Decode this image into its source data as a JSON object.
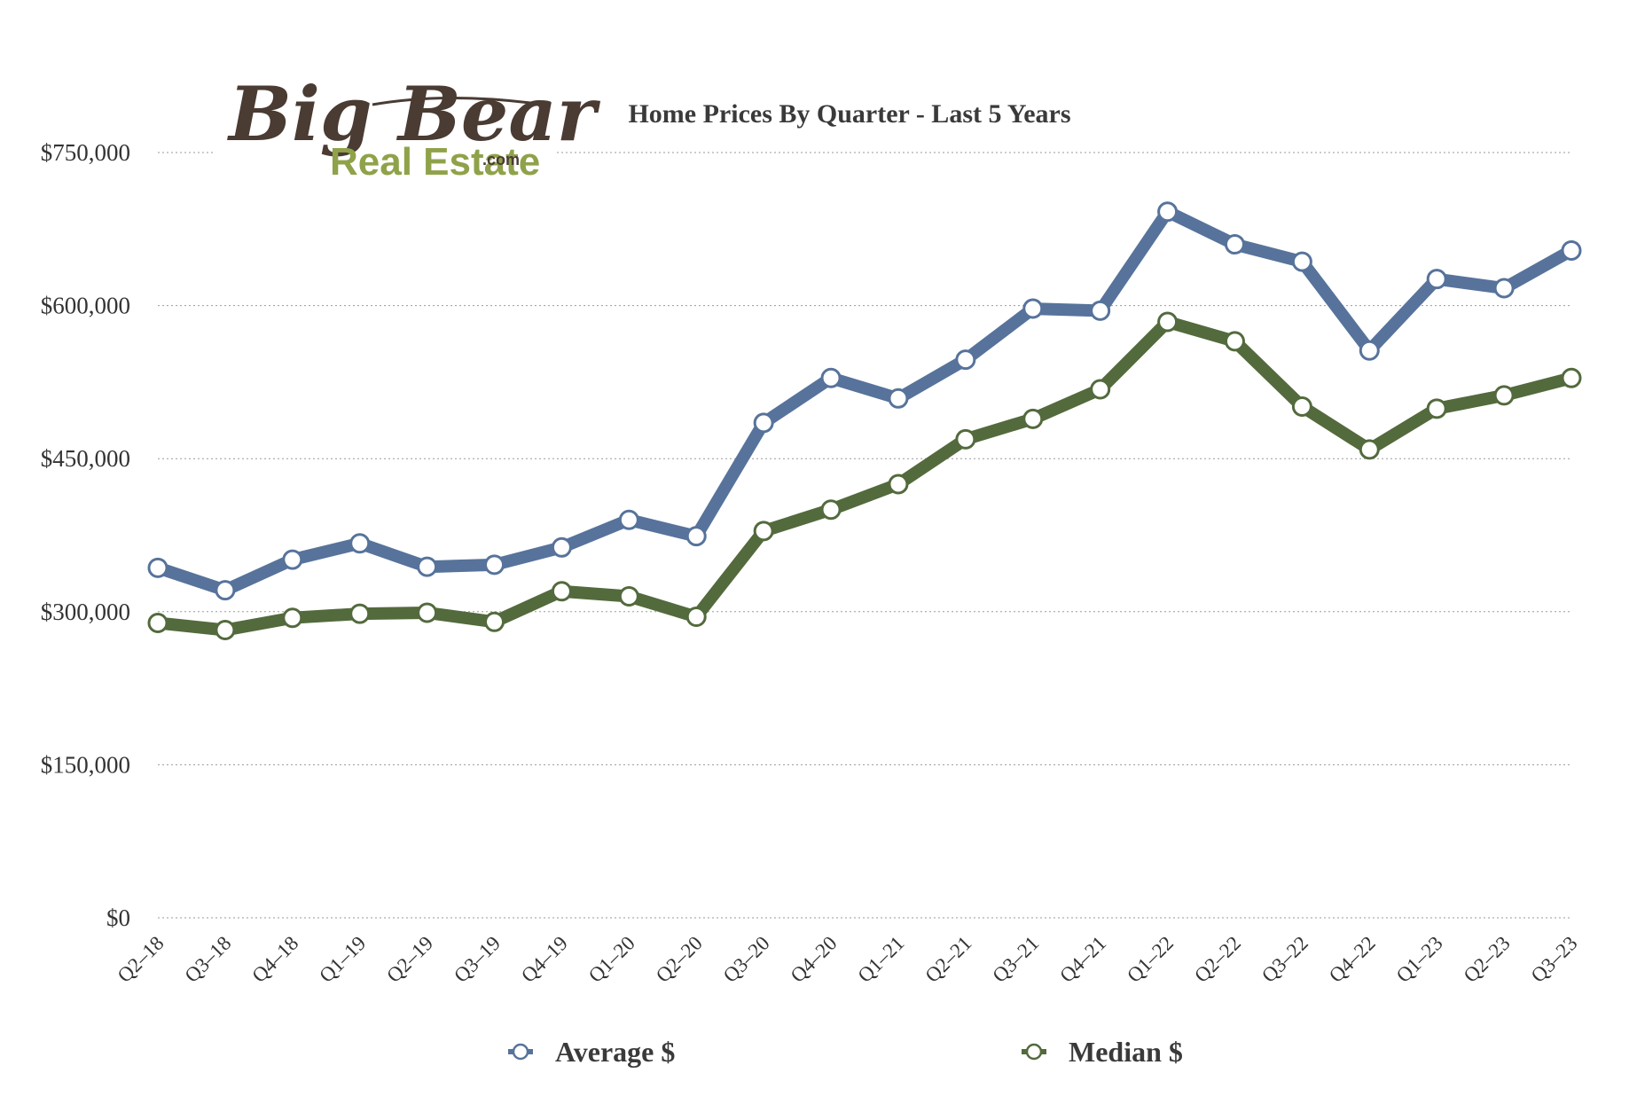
{
  "logo": {
    "main": "Big Bear",
    "sub": "Real Estate",
    "suffix": ".com"
  },
  "chart_data": {
    "type": "line",
    "title": "Home Prices By Quarter - Last 5 Years",
    "xlabel": "",
    "ylabel": "",
    "ylim": [
      0,
      750000
    ],
    "yticks": [
      0,
      150000,
      300000,
      450000,
      600000,
      750000
    ],
    "ytick_labels": [
      "$0",
      "$150,000",
      "$300,000",
      "$450,000",
      "$600,000",
      "$750,000"
    ],
    "grid": true,
    "legend_position": "bottom",
    "categories": [
      "Q2–18",
      "Q3–18",
      "Q4–18",
      "Q1–19",
      "Q2–19",
      "Q3–19",
      "Q4–19",
      "Q1–20",
      "Q2–20",
      "Q3–20",
      "Q4–20",
      "Q1–21",
      "Q2–21",
      "Q3–21",
      "Q4–21",
      "Q1–22",
      "Q2–22",
      "Q3–22",
      "Q4–22",
      "Q1–23",
      "Q2–23",
      "Q3–23"
    ],
    "series": [
      {
        "name": "Average $",
        "color": "#57739b",
        "values": [
          343000,
          321000,
          351000,
          367000,
          344000,
          346000,
          363000,
          390000,
          374000,
          485000,
          529000,
          509000,
          547000,
          597000,
          595000,
          692000,
          660000,
          643000,
          556000,
          626000,
          617000,
          654000
        ]
      },
      {
        "name": "Median $",
        "color": "#536a3d",
        "values": [
          289000,
          282000,
          294000,
          298000,
          299000,
          290000,
          320000,
          315000,
          295000,
          379000,
          400000,
          425000,
          469000,
          489000,
          518000,
          584000,
          565000,
          501000,
          459000,
          499000,
          512000,
          529000
        ]
      }
    ]
  }
}
